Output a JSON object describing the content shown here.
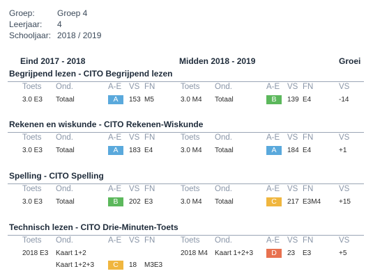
{
  "meta": {
    "groep_label": "Groep:",
    "groep_value": "Groep 4",
    "leerjaar_label": "Leerjaar:",
    "leerjaar_value": "4",
    "schooljaar_label": "Schooljaar:",
    "schooljaar_value": "2018 / 2019"
  },
  "phases": {
    "first": "Eind 2017 - 2018",
    "second": "Midden 2018 - 2019",
    "growth": "Groei"
  },
  "columns": {
    "toets": "Toets",
    "ond": "Ond.",
    "ae": "A-E",
    "vs": "VS",
    "fn": "FN",
    "growth_vs": "VS"
  },
  "colors": {
    "A": "#5aa9dc",
    "B": "#5cb85c",
    "C": "#f0b63f",
    "D": "#e8714f"
  },
  "sections": [
    {
      "title": "Begrijpend lezen - CITO Begrijpend lezen",
      "rows": [
        {
          "t1": "3.0 E3",
          "o1": "Totaal",
          "g1": "A",
          "vs1": "153",
          "fn1": "M5",
          "t2": "3.0 M4",
          "o2": "Totaal",
          "g2": "B",
          "vs2": "139",
          "fn2": "E4",
          "growth": "-14"
        }
      ]
    },
    {
      "title": "Rekenen en wiskunde - CITO Rekenen-Wiskunde",
      "rows": [
        {
          "t1": "3.0 E3",
          "o1": "Totaal",
          "g1": "A",
          "vs1": "183",
          "fn1": "E4",
          "t2": "3.0 M4",
          "o2": "Totaal",
          "g2": "A",
          "vs2": "184",
          "fn2": "E4",
          "growth": "+1"
        }
      ]
    },
    {
      "title": "Spelling - CITO Spelling",
      "rows": [
        {
          "t1": "3.0 E3",
          "o1": "Totaal",
          "g1": "B",
          "vs1": "202",
          "fn1": "E3",
          "t2": "3.0 M4",
          "o2": "Totaal",
          "g2": "C",
          "vs2": "217",
          "fn2": "E3M4",
          "growth": "+15"
        }
      ]
    },
    {
      "title": "Technisch lezen - CITO Drie-Minuten-Toets",
      "rows": [
        {
          "t1": "2018 E3",
          "o1": "Kaart 1+2",
          "t2": "2018 M4",
          "o2": "Kaart 1+2+3",
          "g2": "D",
          "vs2": "23",
          "fn2": "E3",
          "growth": "+5"
        },
        {
          "o1": "Kaart 1+2+3",
          "g1": "C",
          "vs1": "18",
          "fn1": "M3E3"
        }
      ]
    }
  ]
}
